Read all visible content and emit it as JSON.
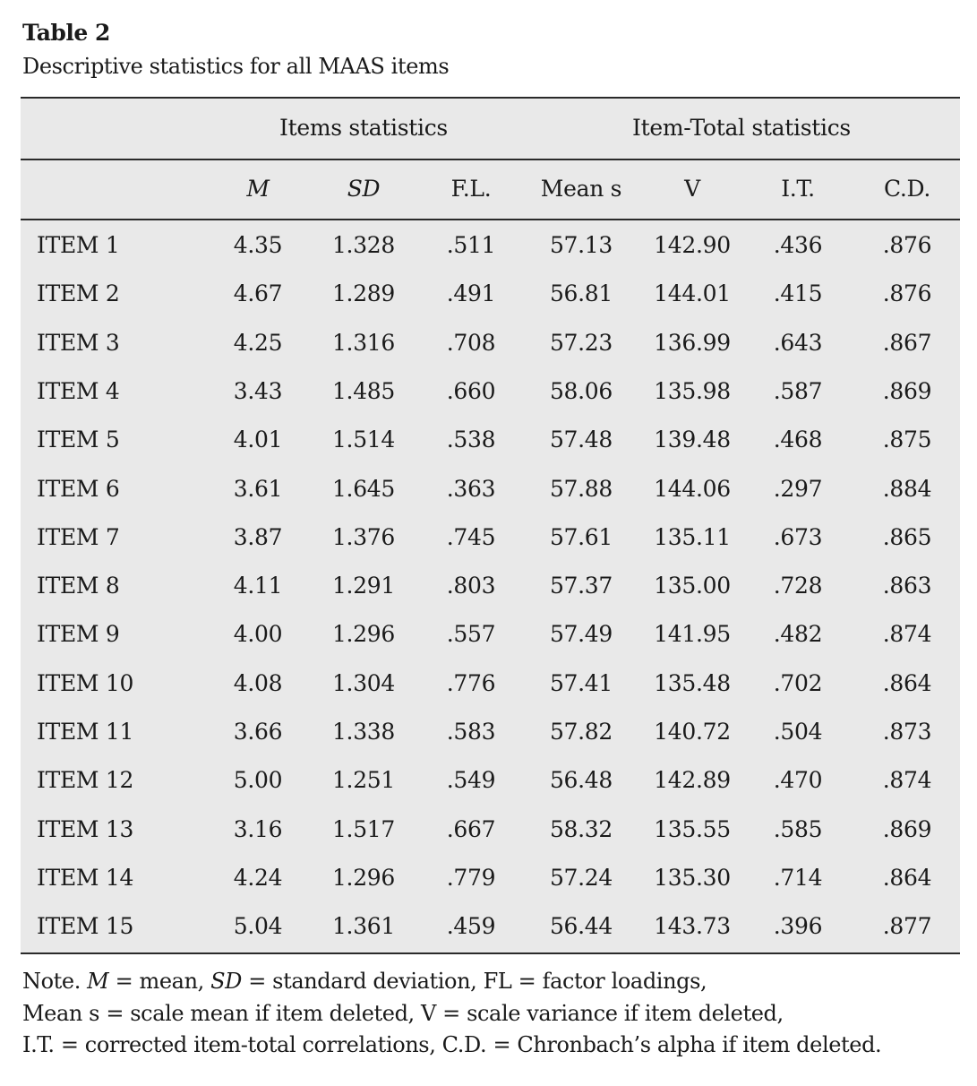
{
  "table": {
    "title": "Table 2",
    "caption": "Descriptive statistics for all MAAS items",
    "group_headers": {
      "items": "Items statistics",
      "item_total": "Item-Total statistics"
    },
    "columns": [
      "M",
      "SD",
      "F.L.",
      "Mean s",
      "V",
      "I.T.",
      "C.D."
    ],
    "rows": [
      {
        "label": "ITEM 1",
        "values": [
          "4.35",
          "1.328",
          ".511",
          "57.13",
          "142.90",
          ".436",
          ".876"
        ]
      },
      {
        "label": "ITEM 2",
        "values": [
          "4.67",
          "1.289",
          ".491",
          "56.81",
          "144.01",
          ".415",
          ".876"
        ]
      },
      {
        "label": "ITEM 3",
        "values": [
          "4.25",
          "1.316",
          ".708",
          "57.23",
          "136.99",
          ".643",
          ".867"
        ]
      },
      {
        "label": "ITEM 4",
        "values": [
          "3.43",
          "1.485",
          ".660",
          "58.06",
          "135.98",
          ".587",
          ".869"
        ]
      },
      {
        "label": "ITEM 5",
        "values": [
          "4.01",
          "1.514",
          ".538",
          "57.48",
          "139.48",
          ".468",
          ".875"
        ]
      },
      {
        "label": "ITEM 6",
        "values": [
          "3.61",
          "1.645",
          ".363",
          "57.88",
          "144.06",
          ".297",
          ".884"
        ]
      },
      {
        "label": "ITEM 7",
        "values": [
          "3.87",
          "1.376",
          ".745",
          "57.61",
          "135.11",
          ".673",
          ".865"
        ]
      },
      {
        "label": "ITEM 8",
        "values": [
          "4.11",
          "1.291",
          ".803",
          "57.37",
          "135.00",
          ".728",
          ".863"
        ]
      },
      {
        "label": "ITEM 9",
        "values": [
          "4.00",
          "1.296",
          ".557",
          "57.49",
          "141.95",
          ".482",
          ".874"
        ]
      },
      {
        "label": "ITEM 10",
        "values": [
          "4.08",
          "1.304",
          ".776",
          "57.41",
          "135.48",
          ".702",
          ".864"
        ]
      },
      {
        "label": "ITEM 11",
        "values": [
          "3.66",
          "1.338",
          ".583",
          "57.82",
          "140.72",
          ".504",
          ".873"
        ]
      },
      {
        "label": "ITEM 12",
        "values": [
          "5.00",
          "1.251",
          ".549",
          "56.48",
          "142.89",
          ".470",
          ".874"
        ]
      },
      {
        "label": "ITEM 13",
        "values": [
          "3.16",
          "1.517",
          ".667",
          "58.32",
          "135.55",
          ".585",
          ".869"
        ]
      },
      {
        "label": "ITEM 14",
        "values": [
          "4.24",
          "1.296",
          ".779",
          "57.24",
          "135.30",
          ".714",
          ".864"
        ]
      },
      {
        "label": "ITEM 15",
        "values": [
          "5.04",
          "1.361",
          ".459",
          "56.44",
          "143.73",
          ".396",
          ".877"
        ]
      }
    ]
  },
  "note": {
    "line1_a": "Note. ",
    "line1_m": "M",
    "line1_b": " = mean, ",
    "line1_sd": "SD",
    "line1_c": " = standard deviation, FL = factor loadings,",
    "line2": "Mean s = scale mean if item deleted, V = scale variance if item deleted,",
    "line3": "I.T. = corrected item-total correlations, C.D. = Chronbach’s alpha if item deleted."
  },
  "colors": {
    "table_background": "#e9e9e9",
    "rule": "#2a2a2a",
    "text": "#1a1a1a"
  }
}
